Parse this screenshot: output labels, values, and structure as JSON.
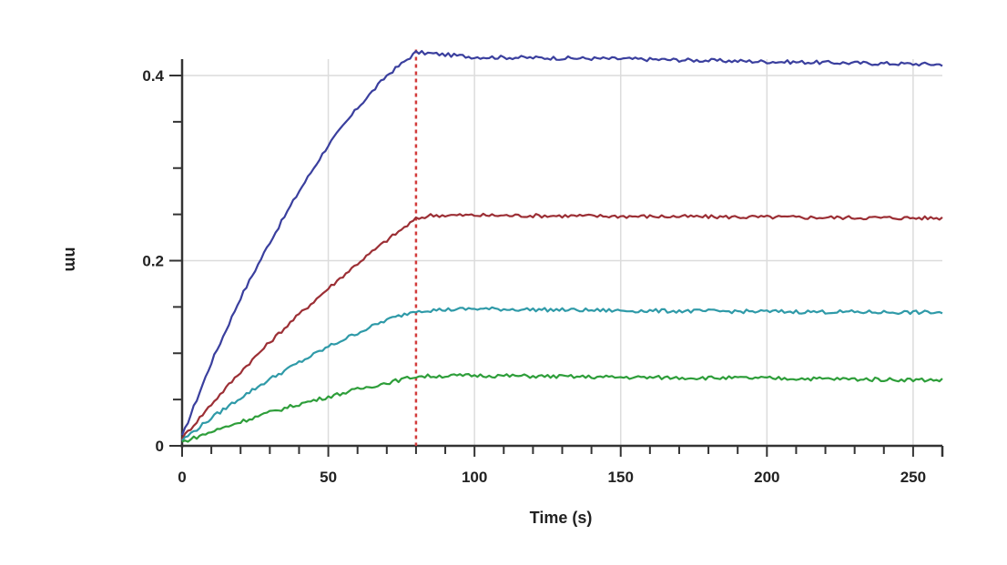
{
  "chart_data": {
    "type": "line",
    "title": "",
    "xlabel": "Time (s)",
    "ylabel": "nm",
    "xlim": [
      0,
      260
    ],
    "ylim": [
      0,
      0.4
    ],
    "x_ticks": [
      0,
      50,
      100,
      150,
      200,
      250
    ],
    "y_ticks": [
      0,
      0.2,
      0.4
    ],
    "y_tick_labels": [
      "0",
      "0.2",
      "0.4"
    ],
    "grid": true,
    "legend": "none",
    "association_end": 80,
    "series": [
      {
        "color": "#3a3f9e",
        "x": [
          0,
          10,
          20,
          30,
          40,
          50,
          60,
          70,
          80,
          100,
          150,
          200,
          260
        ],
        "values": [
          0.01,
          0.09,
          0.16,
          0.22,
          0.275,
          0.325,
          0.365,
          0.4,
          0.425,
          0.42,
          0.418,
          0.415,
          0.412
        ]
      },
      {
        "color": "#9c2f35",
        "x": [
          0,
          10,
          20,
          30,
          40,
          50,
          60,
          70,
          80,
          85,
          100,
          150,
          200,
          260
        ],
        "values": [
          0.008,
          0.045,
          0.08,
          0.112,
          0.142,
          0.17,
          0.197,
          0.222,
          0.245,
          0.249,
          0.249,
          0.248,
          0.247,
          0.246
        ]
      },
      {
        "color": "#2f9aa8",
        "x": [
          0,
          10,
          20,
          30,
          40,
          50,
          60,
          70,
          80,
          100,
          150,
          200,
          260
        ],
        "values": [
          0.006,
          0.03,
          0.052,
          0.072,
          0.09,
          0.107,
          0.122,
          0.136,
          0.146,
          0.148,
          0.146,
          0.145,
          0.144
        ]
      },
      {
        "color": "#2e9e3a",
        "x": [
          0,
          10,
          20,
          30,
          40,
          50,
          60,
          70,
          80,
          100,
          150,
          200,
          260
        ],
        "values": [
          0.004,
          0.015,
          0.026,
          0.036,
          0.045,
          0.053,
          0.061,
          0.068,
          0.075,
          0.076,
          0.074,
          0.073,
          0.071
        ]
      }
    ]
  }
}
